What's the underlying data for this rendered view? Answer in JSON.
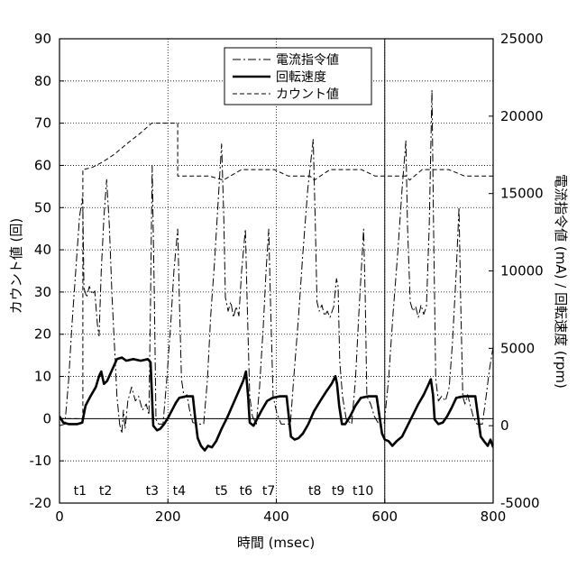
{
  "chart_data": {
    "type": "line",
    "xlabel": "時間 (msec)",
    "ylabel": "カウント値 (回)",
    "y2label": "電流指令値 (mA) / 回転速度 (rpm)",
    "xlim": [
      0,
      800
    ],
    "ylim": [
      -20,
      90
    ],
    "y2lim": [
      -5000,
      25000
    ],
    "xticks": [
      0,
      200,
      400,
      600,
      800
    ],
    "yticks": [
      -20,
      -10,
      0,
      10,
      20,
      30,
      40,
      50,
      60,
      70,
      80,
      90
    ],
    "y2ticks": [
      -5000,
      0,
      5000,
      10000,
      15000,
      20000,
      25000
    ],
    "grid": true,
    "reference_lines": [
      {
        "axis": "y",
        "value": 0
      },
      {
        "axis": "x",
        "value": 600
      }
    ],
    "legend": {
      "position": "top-center"
    },
    "series": [
      {
        "name": "電流指令値",
        "axis": "right",
        "line_style": "dash-dot",
        "line_weight": "thin",
        "color": "#000000",
        "points": [
          [
            0,
            0
          ],
          [
            10,
            100
          ],
          [
            17,
            3000
          ],
          [
            23,
            6500
          ],
          [
            30,
            10000
          ],
          [
            37,
            13500
          ],
          [
            42,
            14700
          ],
          [
            43,
            14100
          ],
          [
            45,
            8900
          ],
          [
            50,
            8300
          ],
          [
            55,
            9000
          ],
          [
            60,
            8500
          ],
          [
            65,
            8700
          ],
          [
            70,
            6500
          ],
          [
            73,
            5800
          ],
          [
            77,
            10000
          ],
          [
            82,
            13500
          ],
          [
            87,
            15900
          ],
          [
            92,
            12900
          ],
          [
            97,
            8300
          ],
          [
            102,
            4800
          ],
          [
            106,
            1900
          ],
          [
            111,
            100
          ],
          [
            115,
            -500
          ],
          [
            118,
            1000
          ],
          [
            121,
            -200
          ],
          [
            126,
            1600
          ],
          [
            133,
            2500
          ],
          [
            140,
            1600
          ],
          [
            146,
            1900
          ],
          [
            153,
            1000
          ],
          [
            160,
            1400
          ],
          [
            165,
            700
          ],
          [
            168,
            8300
          ],
          [
            171,
            16800
          ],
          [
            175,
            8300
          ],
          [
            178,
            400
          ],
          [
            183,
            100
          ],
          [
            191,
            100
          ],
          [
            198,
            3000
          ],
          [
            205,
            6500
          ],
          [
            211,
            10000
          ],
          [
            218,
            12700
          ],
          [
            221,
            8300
          ],
          [
            225,
            3000
          ],
          [
            230,
            1800
          ],
          [
            235,
            2000
          ],
          [
            240,
            1000
          ],
          [
            246,
            200
          ],
          [
            256,
            100
          ],
          [
            266,
            100
          ],
          [
            273,
            3000
          ],
          [
            279,
            7100
          ],
          [
            286,
            10600
          ],
          [
            293,
            14700
          ],
          [
            299,
            18200
          ],
          [
            303,
            13500
          ],
          [
            306,
            8300
          ],
          [
            311,
            7400
          ],
          [
            316,
            8000
          ],
          [
            321,
            7000
          ],
          [
            326,
            7700
          ],
          [
            331,
            7100
          ],
          [
            336,
            10000
          ],
          [
            343,
            12700
          ],
          [
            346,
            8300
          ],
          [
            351,
            1900
          ],
          [
            356,
            600
          ],
          [
            363,
            100
          ],
          [
            369,
            2500
          ],
          [
            376,
            6500
          ],
          [
            381,
            10000
          ],
          [
            386,
            12700
          ],
          [
            389,
            8300
          ],
          [
            394,
            1900
          ],
          [
            401,
            800
          ],
          [
            409,
            100
          ],
          [
            426,
            100
          ],
          [
            432,
            3000
          ],
          [
            441,
            7100
          ],
          [
            449,
            11200
          ],
          [
            458,
            15300
          ],
          [
            468,
            18500
          ],
          [
            472,
            12900
          ],
          [
            475,
            8000
          ],
          [
            479,
            7400
          ],
          [
            484,
            7800
          ],
          [
            489,
            7100
          ],
          [
            494,
            7400
          ],
          [
            499,
            7000
          ],
          [
            506,
            7700
          ],
          [
            511,
            9500
          ],
          [
            514,
            9000
          ],
          [
            517,
            4200
          ],
          [
            522,
            1900
          ],
          [
            529,
            400
          ],
          [
            539,
            100
          ],
          [
            546,
            3000
          ],
          [
            552,
            7100
          ],
          [
            561,
            12700
          ],
          [
            564,
            8300
          ],
          [
            567,
            1900
          ],
          [
            574,
            1400
          ],
          [
            581,
            600
          ],
          [
            589,
            100
          ],
          [
            599,
            100
          ],
          [
            607,
            3000
          ],
          [
            615,
            7100
          ],
          [
            624,
            11200
          ],
          [
            632,
            15300
          ],
          [
            639,
            18400
          ],
          [
            642,
            12900
          ],
          [
            647,
            8000
          ],
          [
            652,
            7400
          ],
          [
            657,
            7700
          ],
          [
            662,
            7000
          ],
          [
            667,
            7800
          ],
          [
            672,
            7200
          ],
          [
            677,
            7700
          ],
          [
            682,
            12900
          ],
          [
            687,
            21700
          ],
          [
            690,
            12900
          ],
          [
            694,
            3000
          ],
          [
            699,
            1600
          ],
          [
            705,
            1900
          ],
          [
            712,
            1600
          ],
          [
            719,
            2500
          ],
          [
            725,
            5400
          ],
          [
            732,
            10000
          ],
          [
            737,
            14100
          ],
          [
            740,
            8300
          ],
          [
            744,
            1900
          ],
          [
            748,
            1400
          ],
          [
            753,
            2000
          ],
          [
            758,
            1300
          ],
          [
            763,
            600
          ],
          [
            770,
            100
          ],
          [
            780,
            100
          ],
          [
            787,
            1900
          ],
          [
            793,
            3600
          ],
          [
            800,
            5100
          ]
        ]
      },
      {
        "name": "回転速度",
        "axis": "right",
        "line_style": "solid",
        "line_weight": "thick",
        "color": "#000000",
        "points": [
          [
            0,
            600
          ],
          [
            7,
            200
          ],
          [
            17,
            100
          ],
          [
            33,
            100
          ],
          [
            42,
            200
          ],
          [
            43,
            400
          ],
          [
            48,
            1300
          ],
          [
            57,
            1900
          ],
          [
            67,
            2500
          ],
          [
            73,
            3200
          ],
          [
            77,
            3500
          ],
          [
            82,
            2700
          ],
          [
            88,
            2900
          ],
          [
            97,
            3600
          ],
          [
            106,
            4300
          ],
          [
            115,
            4400
          ],
          [
            123,
            4200
          ],
          [
            136,
            4300
          ],
          [
            150,
            4200
          ],
          [
            163,
            4300
          ],
          [
            168,
            4100
          ],
          [
            173,
            0
          ],
          [
            180,
            -300
          ],
          [
            186,
            -200
          ],
          [
            193,
            100
          ],
          [
            200,
            500
          ],
          [
            206,
            900
          ],
          [
            215,
            1500
          ],
          [
            221,
            1800
          ],
          [
            233,
            1900
          ],
          [
            246,
            1900
          ],
          [
            250,
            600
          ],
          [
            255,
            -800
          ],
          [
            261,
            -1300
          ],
          [
            268,
            -1600
          ],
          [
            274,
            -1300
          ],
          [
            281,
            -1400
          ],
          [
            289,
            -1000
          ],
          [
            299,
            -200
          ],
          [
            309,
            500
          ],
          [
            319,
            1300
          ],
          [
            329,
            2100
          ],
          [
            339,
            2900
          ],
          [
            344,
            3500
          ],
          [
            348,
            1900
          ],
          [
            351,
            200
          ],
          [
            358,
            0
          ],
          [
            364,
            400
          ],
          [
            373,
            1000
          ],
          [
            383,
            1600
          ],
          [
            393,
            1800
          ],
          [
            406,
            1900
          ],
          [
            419,
            1900
          ],
          [
            423,
            600
          ],
          [
            427,
            -700
          ],
          [
            434,
            -900
          ],
          [
            441,
            -800
          ],
          [
            449,
            -500
          ],
          [
            459,
            100
          ],
          [
            469,
            900
          ],
          [
            481,
            1600
          ],
          [
            492,
            2200
          ],
          [
            502,
            2700
          ],
          [
            509,
            3200
          ],
          [
            512,
            2700
          ],
          [
            516,
            1300
          ],
          [
            521,
            100
          ],
          [
            527,
            100
          ],
          [
            536,
            600
          ],
          [
            546,
            1300
          ],
          [
            556,
            1800
          ],
          [
            569,
            1900
          ],
          [
            585,
            1900
          ],
          [
            590,
            700
          ],
          [
            595,
            -500
          ],
          [
            600,
            -900
          ],
          [
            607,
            -1000
          ],
          [
            614,
            -1300
          ],
          [
            622,
            -1000
          ],
          [
            632,
            -700
          ],
          [
            642,
            0
          ],
          [
            652,
            700
          ],
          [
            662,
            1400
          ],
          [
            672,
            2000
          ],
          [
            680,
            2600
          ],
          [
            685,
            3000
          ],
          [
            689,
            2000
          ],
          [
            692,
            400
          ],
          [
            699,
            100
          ],
          [
            707,
            200
          ],
          [
            715,
            600
          ],
          [
            724,
            1200
          ],
          [
            732,
            1800
          ],
          [
            745,
            1900
          ],
          [
            767,
            1900
          ],
          [
            772,
            600
          ],
          [
            777,
            -700
          ],
          [
            783,
            -1000
          ],
          [
            790,
            -1300
          ],
          [
            795,
            -900
          ],
          [
            800,
            -1400
          ]
        ]
      },
      {
        "name": "カウント値",
        "axis": "left",
        "line_style": "dashed",
        "line_weight": "thin",
        "color": "#000000",
        "points": [
          [
            0,
            0
          ],
          [
            43,
            0
          ],
          [
            43,
            59
          ],
          [
            60,
            59.5
          ],
          [
            78,
            60.7
          ],
          [
            101,
            62.6
          ],
          [
            123,
            65
          ],
          [
            148,
            67.5
          ],
          [
            170,
            70
          ],
          [
            218,
            70
          ],
          [
            218,
            57.5
          ],
          [
            276,
            57.5
          ],
          [
            302,
            56.5
          ],
          [
            336,
            59
          ],
          [
            396,
            59
          ],
          [
            422,
            57.5
          ],
          [
            462,
            57.5
          ],
          [
            470,
            56.5
          ],
          [
            499,
            59
          ],
          [
            557,
            59
          ],
          [
            582,
            57.5
          ],
          [
            639,
            57.5
          ],
          [
            646,
            56.5
          ],
          [
            669,
            59
          ],
          [
            718,
            59
          ],
          [
            747,
            57.5
          ],
          [
            800,
            57.5
          ]
        ]
      }
    ],
    "annotations": [
      {
        "label": "t1",
        "x": 38
      },
      {
        "label": "t2",
        "x": 85
      },
      {
        "label": "t3",
        "x": 171
      },
      {
        "label": "t4",
        "x": 221
      },
      {
        "label": "t5",
        "x": 299
      },
      {
        "label": "t6",
        "x": 344
      },
      {
        "label": "t7",
        "x": 386
      },
      {
        "label": "t8",
        "x": 471
      },
      {
        "label": "t9",
        "x": 514
      },
      {
        "label": "t10",
        "x": 560
      }
    ]
  }
}
